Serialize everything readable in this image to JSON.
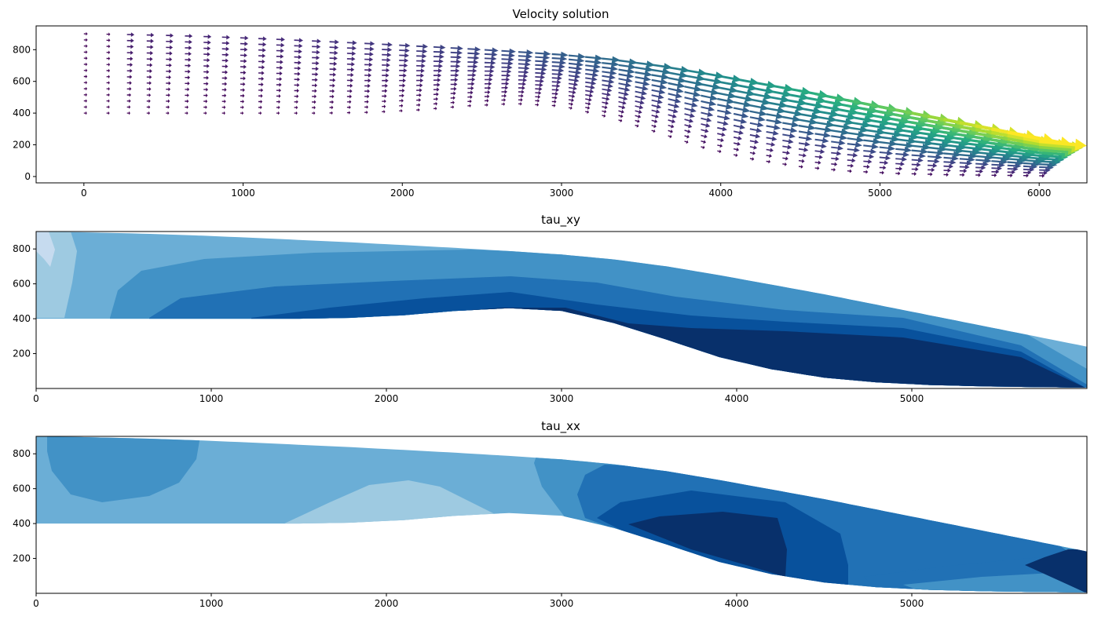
{
  "chart_data": [
    {
      "type": "quiver",
      "title": "Velocity solution",
      "xlabel": "",
      "ylabel": "",
      "xlim": [
        -300,
        6300
      ],
      "ylim": [
        -40,
        950
      ],
      "xticks": [
        0,
        1000,
        2000,
        3000,
        4000,
        5000,
        6000
      ],
      "yticks": [
        0,
        200,
        400,
        600,
        800
      ],
      "colormap": "viridis",
      "domain": {
        "x": [
          0,
          300,
          600,
          900,
          1200,
          1500,
          1800,
          2100,
          2400,
          2700,
          3000,
          3300,
          3600,
          3900,
          4200,
          4500,
          4800,
          5100,
          5400,
          5700,
          6000,
          6300
        ],
        "surface": [
          900,
          895,
          888,
          878,
          866,
          852,
          838,
          822,
          806,
          788,
          768,
          740,
          700,
          650,
          595,
          540,
          480,
          420,
          360,
          300,
          240,
          240
        ],
        "bed": [
          400,
          400,
          400,
          400,
          400,
          400,
          405,
          420,
          445,
          460,
          445,
          375,
          280,
          180,
          110,
          62,
          35,
          20,
          12,
          8,
          5,
          0
        ]
      }
    },
    {
      "type": "contourf",
      "title": "tau_xy",
      "xlabel": "",
      "ylabel": "",
      "xlim": [
        0,
        6000
      ],
      "ylim": [
        0,
        900
      ],
      "xticks": [
        0,
        1000,
        2000,
        3000,
        4000,
        5000
      ],
      "yticks": [
        200,
        400,
        600,
        800
      ],
      "colormap": "Blues"
    },
    {
      "type": "contourf",
      "title": "tau_xx",
      "xlabel": "",
      "ylabel": "",
      "xlim": [
        0,
        6000
      ],
      "ylim": [
        0,
        900
      ],
      "xticks": [
        0,
        1000,
        2000,
        3000,
        4000,
        5000
      ],
      "yticks": [
        200,
        400,
        600,
        800
      ],
      "colormap": "Blues"
    }
  ],
  "colors": {
    "blues": [
      "#c6dbef",
      "#9ecae1",
      "#6baed6",
      "#4292c6",
      "#2171b5",
      "#08519c",
      "#08306b"
    ],
    "viridis": [
      "#440154",
      "#472d7b",
      "#3b528b",
      "#2c728e",
      "#21918c",
      "#28ae80",
      "#5ec962",
      "#addc30",
      "#fde725"
    ]
  }
}
